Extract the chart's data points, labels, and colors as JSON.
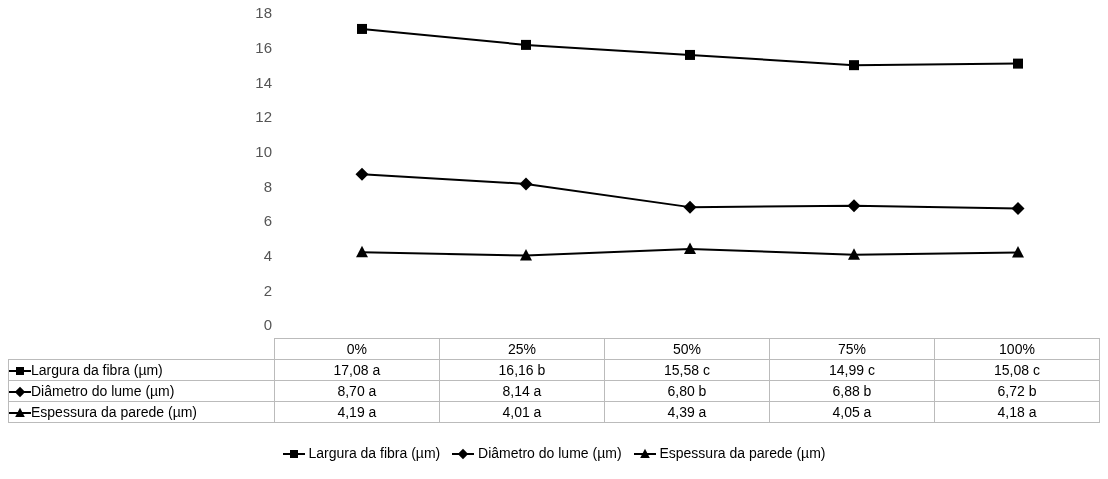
{
  "chart_data": {
    "type": "line",
    "categories": [
      "0%",
      "25%",
      "50%",
      "75%",
      "100%"
    ],
    "series": [
      {
        "name": "Largura da fibra (µm)",
        "color": "#000000",
        "marker": "square",
        "values": [
          17.08,
          16.16,
          15.58,
          14.99,
          15.08
        ],
        "value_labels": [
          "17,08 a",
          "16,16 b",
          "15,58 c",
          "14,99 c",
          "15,08 c"
        ]
      },
      {
        "name": "Diâmetro do lume (µm)",
        "color": "#000000",
        "marker": "diamond",
        "values": [
          8.7,
          8.14,
          6.8,
          6.88,
          6.72
        ],
        "value_labels": [
          "8,70 a",
          "8,14 a",
          "6,80 b",
          "6,88 b",
          "6,72 b"
        ]
      },
      {
        "name": "Espessura da parede (µm)",
        "color": "#000000",
        "marker": "triangle",
        "values": [
          4.19,
          4.01,
          4.39,
          4.05,
          4.18
        ],
        "value_labels": [
          "4,19 a",
          "4,01 a",
          "4,39 a",
          "4,05 a",
          "4,18 a"
        ]
      }
    ],
    "ylim": [
      0,
      18
    ],
    "yticks": [
      0,
      2,
      4,
      6,
      8,
      10,
      12,
      14,
      16,
      18
    ],
    "grid": false,
    "legend": "bottom",
    "line_style": "solid"
  }
}
